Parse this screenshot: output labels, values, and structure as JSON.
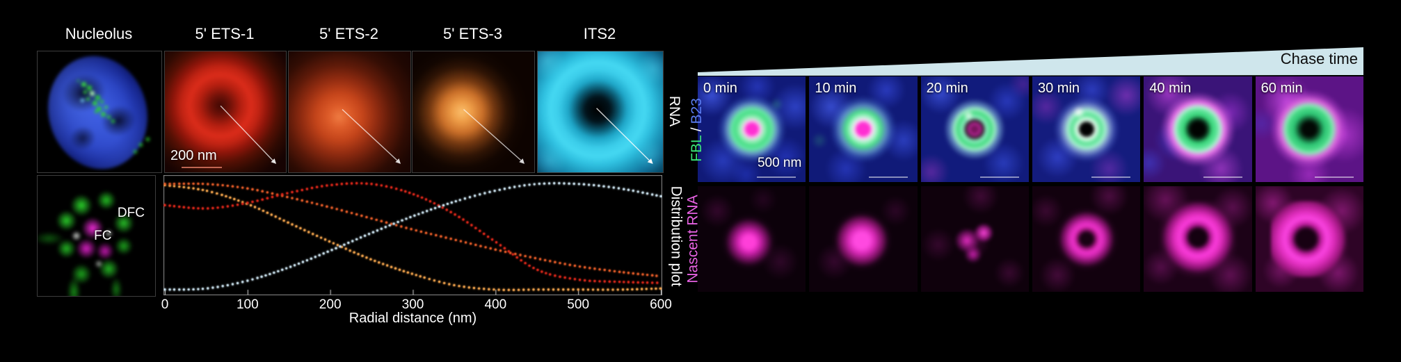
{
  "palette": {
    "background": "#000000",
    "chase_wedge": "#cfe6ec",
    "fbl_green": "#3be87c",
    "b23_blue": "#5a7cf0",
    "nascent_magenta": "#e762e2",
    "dfc_channel_green": "#2dd42d",
    "fc_channel_magenta": "#ff2de6"
  },
  "figure": {
    "left": {
      "titles": [
        "Nucleolus",
        "5' ETS-1",
        "5' ETS-2",
        "5' ETS-3",
        "ITS2"
      ],
      "row_label_rna": "RNA",
      "row_label_plot": "Distribution plot",
      "scale_bar_label": "200 nm",
      "dfc_label": "DFC",
      "fc_label": "FC"
    },
    "right": {
      "chase_label": "Chase time",
      "times": [
        "0 min",
        "10 min",
        "20 min",
        "30 min",
        "40 min",
        "60 min"
      ],
      "fbl": "FBL",
      "slash": "/",
      "b23": "B23",
      "nascent_label": "Nascent RNA",
      "scale_bar_label": "500 nm"
    }
  },
  "chart_data": {
    "type": "line",
    "marker_style": "dotted",
    "title": "Distribution plot",
    "xlabel": "Radial distance (nm)",
    "ylabel": "",
    "x": [
      0,
      50,
      100,
      150,
      200,
      250,
      300,
      350,
      400,
      450,
      500,
      550,
      600
    ],
    "xticks": [
      0,
      100,
      200,
      300,
      400,
      500,
      600
    ],
    "xlim": [
      0,
      600
    ],
    "ylim": [
      0,
      1
    ],
    "grid": false,
    "legend_position": "none (series colors match RNA panel titles above)",
    "series": [
      {
        "name": "5' ETS-1",
        "color": "#d8271a",
        "values": [
          0.78,
          0.75,
          0.8,
          0.89,
          0.96,
          0.97,
          0.88,
          0.7,
          0.45,
          0.2,
          0.11,
          0.09,
          0.08
        ]
      },
      {
        "name": "5' ETS-2",
        "color": "#e25b28",
        "values": [
          0.97,
          0.97,
          0.93,
          0.85,
          0.76,
          0.66,
          0.56,
          0.47,
          0.38,
          0.3,
          0.23,
          0.18,
          0.14
        ]
      },
      {
        "name": "5' ETS-3",
        "color": "#f0a24c",
        "values": [
          0.96,
          0.91,
          0.79,
          0.62,
          0.45,
          0.29,
          0.16,
          0.06,
          0.02,
          0.02,
          0.02,
          0.02,
          0.03
        ]
      },
      {
        "name": "ITS2",
        "color": "#c9e0ec",
        "values": [
          0.02,
          0.03,
          0.1,
          0.22,
          0.37,
          0.53,
          0.68,
          0.81,
          0.91,
          0.97,
          0.97,
          0.93,
          0.86
        ]
      }
    ]
  }
}
